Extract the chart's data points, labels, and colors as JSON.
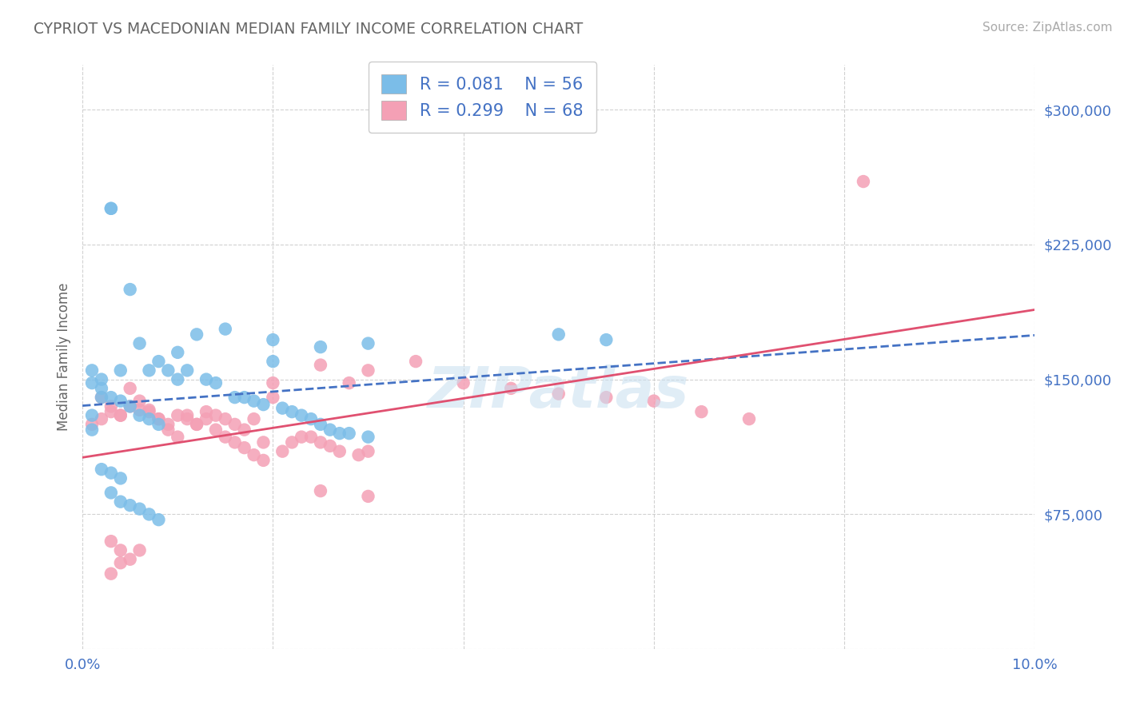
{
  "title": "CYPRIOT VS MACEDONIAN MEDIAN FAMILY INCOME CORRELATION CHART",
  "source": "Source: ZipAtlas.com",
  "ylabel": "Median Family Income",
  "xlim": [
    0.0,
    0.1
  ],
  "ylim": [
    0,
    325000
  ],
  "yticks": [
    0,
    75000,
    150000,
    225000,
    300000
  ],
  "xticks": [
    0.0,
    0.02,
    0.04,
    0.06,
    0.08,
    0.1
  ],
  "ytick_labels": [
    "",
    "$75,000",
    "$150,000",
    "$225,000",
    "$300,000"
  ],
  "cypriot_R": 0.081,
  "cypriot_N": 56,
  "macedonian_R": 0.299,
  "macedonian_N": 68,
  "cypriot_color": "#7bbde8",
  "macedonian_color": "#f4a0b5",
  "cypriot_line_color": "#4472c4",
  "macedonian_line_color": "#e05070",
  "background_color": "#ffffff",
  "grid_color": "#cccccc",
  "title_color": "#666666",
  "tick_label_color": "#4472c4",
  "watermark": "ZIPatlas",
  "cypriot_x": [
    0.002,
    0.003,
    0.003,
    0.004,
    0.005,
    0.006,
    0.007,
    0.008,
    0.009,
    0.01,
    0.01,
    0.011,
    0.012,
    0.013,
    0.014,
    0.015,
    0.016,
    0.017,
    0.018,
    0.019,
    0.02,
    0.021,
    0.022,
    0.023,
    0.024,
    0.025,
    0.026,
    0.027,
    0.028,
    0.03,
    0.001,
    0.001,
    0.002,
    0.002,
    0.003,
    0.004,
    0.005,
    0.006,
    0.007,
    0.008,
    0.001,
    0.001,
    0.002,
    0.003,
    0.004,
    0.05,
    0.055,
    0.02,
    0.025,
    0.03,
    0.003,
    0.004,
    0.005,
    0.006,
    0.007,
    0.008
  ],
  "cypriot_y": [
    150000,
    245000,
    245000,
    155000,
    200000,
    170000,
    155000,
    160000,
    155000,
    150000,
    165000,
    155000,
    175000,
    150000,
    148000,
    178000,
    140000,
    140000,
    138000,
    136000,
    160000,
    134000,
    132000,
    130000,
    128000,
    125000,
    122000,
    120000,
    120000,
    118000,
    155000,
    148000,
    140000,
    145000,
    140000,
    138000,
    135000,
    130000,
    128000,
    125000,
    130000,
    122000,
    100000,
    98000,
    95000,
    175000,
    172000,
    172000,
    168000,
    170000,
    87000,
    82000,
    80000,
    78000,
    75000,
    72000
  ],
  "macedonian_x": [
    0.001,
    0.002,
    0.003,
    0.004,
    0.005,
    0.006,
    0.007,
    0.008,
    0.009,
    0.01,
    0.011,
    0.012,
    0.013,
    0.014,
    0.015,
    0.016,
    0.017,
    0.018,
    0.019,
    0.02,
    0.021,
    0.022,
    0.023,
    0.024,
    0.025,
    0.026,
    0.027,
    0.028,
    0.029,
    0.03,
    0.002,
    0.003,
    0.004,
    0.005,
    0.006,
    0.007,
    0.008,
    0.009,
    0.01,
    0.011,
    0.012,
    0.013,
    0.014,
    0.015,
    0.016,
    0.017,
    0.018,
    0.019,
    0.02,
    0.025,
    0.03,
    0.035,
    0.04,
    0.045,
    0.05,
    0.055,
    0.06,
    0.065,
    0.07,
    0.082,
    0.003,
    0.004,
    0.005,
    0.006,
    0.003,
    0.004,
    0.025,
    0.03
  ],
  "macedonian_y": [
    125000,
    128000,
    132000,
    130000,
    135000,
    133000,
    132000,
    128000,
    125000,
    130000,
    128000,
    125000,
    132000,
    130000,
    128000,
    125000,
    122000,
    128000,
    115000,
    140000,
    110000,
    115000,
    118000,
    118000,
    115000,
    113000,
    110000,
    148000,
    108000,
    110000,
    140000,
    135000,
    130000,
    145000,
    138000,
    133000,
    128000,
    122000,
    118000,
    130000,
    125000,
    128000,
    122000,
    118000,
    115000,
    112000,
    108000,
    105000,
    148000,
    158000,
    155000,
    160000,
    148000,
    145000,
    142000,
    140000,
    138000,
    132000,
    128000,
    260000,
    60000,
    55000,
    50000,
    55000,
    42000,
    48000,
    88000,
    85000
  ]
}
